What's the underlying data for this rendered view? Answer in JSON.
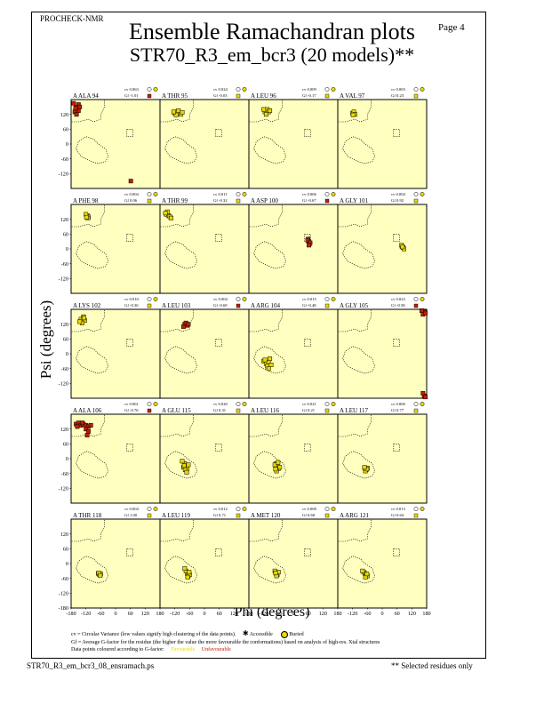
{
  "header": {
    "program": "PROCHECK-NMR",
    "page": "Page  4",
    "title": "Ensemble Ramachandran plots",
    "subtitle": "STR70_R3_em_bcr3 (20 models)**"
  },
  "axes": {
    "ylabel": "Psi (degrees)",
    "xlabel": "Phi (degrees)"
  },
  "legend": {
    "line1": "cv = Circular Variance (low values signify high clustering of the data points).",
    "accessible": "Accessible",
    "buried": "Buried",
    "line2": "Gf = Average G-factor for the residue (the higher the value the more favourable the conformations) based on analysis of high-res. Xtal structures",
    "line3": "Data points coloured according to G-factor:",
    "favourable": "Favourable",
    "unfavourable": "Unfavourable"
  },
  "footer": {
    "file": "STR70_R3_em_bcr3_08_ensramach.ps",
    "note": "** Selected residues only"
  },
  "colors": {
    "panel_bg": "#ffffc0",
    "favourable": "#e8d800",
    "unfavourable": "#c02000",
    "region_border": "#000000"
  },
  "chart_data": {
    "type": "scatter",
    "xlim": [
      -180,
      180
    ],
    "ylim": [
      -180,
      180
    ],
    "x_ticks": [
      -180,
      -120,
      -60,
      0,
      60,
      120,
      180
    ],
    "y_ticks": [
      120,
      60,
      0,
      -60,
      -120
    ],
    "y_ticks_bottom_row": [
      120,
      60,
      0,
      -60,
      -120,
      -180
    ],
    "panels": [
      {
        "residue": "A ALA 94",
        "cv": "0.063",
        "gf": "-1.01",
        "gf_num": -1.01,
        "points": [
          [
            -160,
            150
          ],
          [
            -155,
            140
          ],
          [
            -150,
            160
          ],
          [
            -165,
            130
          ],
          [
            -145,
            150
          ],
          [
            -158,
            120
          ],
          [
            -170,
            165
          ],
          [
            -150,
            135
          ],
          [
            -162,
            145
          ],
          [
            62,
            -150
          ]
        ]
      },
      {
        "residue": "A THR 95",
        "cv": "0.024",
        "gf": "-0.03",
        "gf_num": -0.03,
        "points": [
          [
            -120,
            125
          ],
          [
            -110,
            130
          ],
          [
            -100,
            125
          ],
          [
            -95,
            120
          ],
          [
            -115,
            118
          ],
          [
            -105,
            135
          ],
          [
            -90,
            128
          ],
          [
            -125,
            130
          ]
        ]
      },
      {
        "residue": "A LEU 96",
        "cv": "0.009",
        "gf": "-0.17",
        "gf_num": -0.17,
        "points": [
          [
            -115,
            130
          ],
          [
            -105,
            140
          ],
          [
            -100,
            130
          ],
          [
            -110,
            120
          ],
          [
            -95,
            135
          ],
          [
            -120,
            140
          ]
        ]
      },
      {
        "residue": "A VAL 97",
        "cv": "0.003",
        "gf": "0.23",
        "gf_num": 0.23,
        "points": [
          [
            -120,
            125
          ],
          [
            -115,
            130
          ],
          [
            -110,
            120
          ],
          [
            -118,
            118
          ]
        ]
      },
      {
        "residue": "A PHE 98",
        "cv": "0.004",
        "gf": "0.06",
        "gf_num": 0.06,
        "points": [
          [
            -115,
            135
          ],
          [
            -110,
            130
          ],
          [
            -120,
            140
          ],
          [
            -112,
            125
          ],
          [
            -118,
            128
          ]
        ]
      },
      {
        "residue": "A THR 99",
        "cv": "0.011",
        "gf": "-0.32",
        "gf_num": -0.32,
        "points": [
          [
            -155,
            140
          ],
          [
            -145,
            135
          ],
          [
            -150,
            150
          ],
          [
            -140,
            130
          ],
          [
            -135,
            125
          ],
          [
            -158,
            145
          ]
        ]
      },
      {
        "residue": "A ASP 100",
        "cv": "0.006",
        "gf": "-0.67",
        "gf_num": -0.67,
        "points": [
          [
            60,
            40
          ],
          [
            62,
            30
          ],
          [
            65,
            20
          ],
          [
            58,
            35
          ],
          [
            68,
            25
          ],
          [
            63,
            15
          ]
        ]
      },
      {
        "residue": "A GLY 101",
        "cv": "0.004",
        "gf": "0.92",
        "gf_num": 0.92,
        "points": [
          [
            80,
            10
          ],
          [
            85,
            5
          ],
          [
            78,
            15
          ],
          [
            88,
            0
          ],
          [
            82,
            8
          ]
        ]
      },
      {
        "residue": "A LYS 102",
        "cv": "0.010",
        "gf": "-0.30",
        "gf_num": -0.3,
        "points": [
          [
            -140,
            140
          ],
          [
            -130,
            150
          ],
          [
            -125,
            135
          ],
          [
            -135,
            125
          ],
          [
            -145,
            130
          ],
          [
            -128,
            145
          ]
        ]
      },
      {
        "residue": "A LEU 103",
        "cv": "0.004",
        "gf": "-0.69",
        "gf_num": -0.69,
        "points": [
          [
            -80,
            120
          ],
          [
            -70,
            115
          ],
          [
            -75,
            125
          ],
          [
            -65,
            120
          ],
          [
            -85,
            110
          ]
        ]
      },
      {
        "residue": "A ARG 104",
        "cv": "0.015",
        "gf": "-0.48",
        "gf_num": -0.48,
        "points": [
          [
            -120,
            -30
          ],
          [
            -110,
            -40
          ],
          [
            -100,
            -35
          ],
          [
            -95,
            -20
          ],
          [
            -105,
            -50
          ],
          [
            -90,
            -45
          ],
          [
            -115,
            -25
          ],
          [
            -100,
            -60
          ]
        ]
      },
      {
        "residue": "A GLY 105",
        "cv": "0.023",
        "gf": "-0.58",
        "gf_num": -0.58,
        "points": [
          [
            170,
            170
          ],
          [
            165,
            160
          ],
          [
            175,
            165
          ],
          [
            160,
            175
          ],
          [
            170,
            -170
          ],
          [
            165,
            -160
          ],
          [
            175,
            -175
          ]
        ]
      },
      {
        "residue": "A ALA 106",
        "cv": "0.061",
        "gf": "-0.76",
        "gf_num": -0.76,
        "points": [
          [
            -160,
            140
          ],
          [
            -150,
            145
          ],
          [
            -140,
            135
          ],
          [
            -130,
            140
          ],
          [
            -120,
            135
          ],
          [
            -110,
            130
          ],
          [
            -100,
            135
          ],
          [
            -155,
            130
          ],
          [
            -135,
            145
          ],
          [
            -120,
            120
          ],
          [
            -110,
            110
          ],
          [
            -115,
            95
          ]
        ]
      },
      {
        "residue": "A GLU 115",
        "cv": "0.020",
        "gf": "0.31",
        "gf_num": 0.31,
        "points": [
          [
            -80,
            -20
          ],
          [
            -75,
            -30
          ],
          [
            -70,
            -40
          ],
          [
            -85,
            -35
          ],
          [
            -65,
            -25
          ],
          [
            -78,
            -45
          ],
          [
            -90,
            -10
          ],
          [
            -72,
            -55
          ],
          [
            -82,
            -28
          ]
        ]
      },
      {
        "residue": "A LEU 116",
        "cv": "0.021",
        "gf": "0.21",
        "gf_num": 0.21,
        "points": [
          [
            -70,
            -20
          ],
          [
            -65,
            -30
          ],
          [
            -60,
            -40
          ],
          [
            -75,
            -25
          ],
          [
            -55,
            -35
          ],
          [
            -68,
            -50
          ],
          [
            -62,
            -15
          ],
          [
            -72,
            -42
          ]
        ]
      },
      {
        "residue": "A LEU 117",
        "cv": "0.006",
        "gf": "0.77",
        "gf_num": 0.77,
        "points": [
          [
            -70,
            -40
          ],
          [
            -65,
            -45
          ],
          [
            -60,
            -38
          ],
          [
            -68,
            -50
          ],
          [
            -62,
            -42
          ],
          [
            -72,
            -35
          ]
        ]
      },
      {
        "residue": "A THR 118",
        "cv": "0.004",
        "gf": "1.00",
        "gf_num": 1.0,
        "points": [
          [
            -70,
            -40
          ],
          [
            -65,
            -45
          ],
          [
            -60,
            -42
          ],
          [
            -68,
            -38
          ],
          [
            -62,
            -48
          ]
        ]
      },
      {
        "residue": "A LEU 119",
        "cv": "0.012",
        "gf": "0.71",
        "gf_num": 0.71,
        "points": [
          [
            -70,
            -40
          ],
          [
            -65,
            -50
          ],
          [
            -60,
            -45
          ],
          [
            -75,
            -30
          ],
          [
            -80,
            -20
          ],
          [
            -68,
            -55
          ],
          [
            -62,
            -35
          ]
        ]
      },
      {
        "residue": "A MET 120",
        "cv": "0.008",
        "gf": "0.68",
        "gf_num": 0.68,
        "points": [
          [
            -70,
            -40
          ],
          [
            -65,
            -45
          ],
          [
            -60,
            -35
          ],
          [
            -75,
            -30
          ],
          [
            -68,
            -50
          ],
          [
            -72,
            -38
          ]
        ]
      },
      {
        "residue": "A ARG 121",
        "cv": "0.013",
        "gf": "0.64",
        "gf_num": 0.64,
        "points": [
          [
            -70,
            -40
          ],
          [
            -65,
            -45
          ],
          [
            -60,
            -50
          ],
          [
            -75,
            -35
          ],
          [
            -80,
            -30
          ],
          [
            -68,
            -55
          ],
          [
            -62,
            -42
          ]
        ]
      }
    ]
  }
}
